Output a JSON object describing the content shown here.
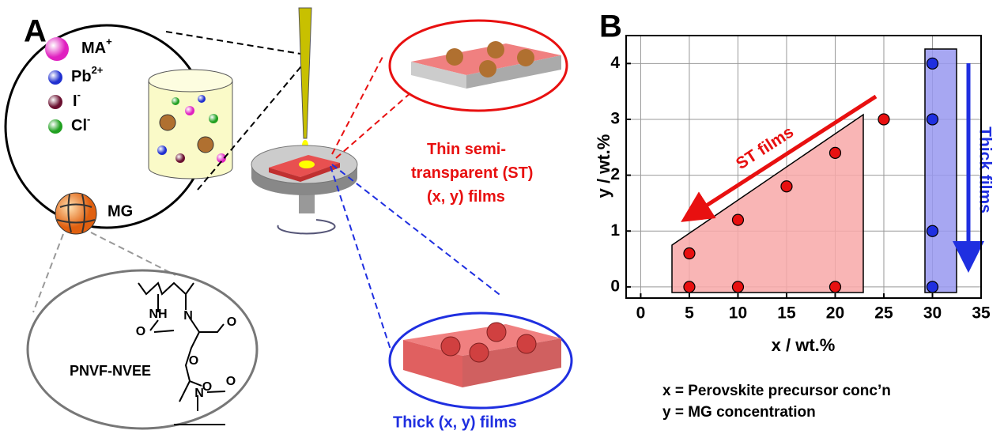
{
  "panel_a": {
    "label": "A",
    "ions": [
      {
        "base": "MA",
        "sup": "+"
      },
      {
        "base": "Pb",
        "sup": "2+"
      },
      {
        "base": "I",
        "sup": "-"
      },
      {
        "base": "Cl",
        "sup": "-"
      }
    ],
    "mg_label": "MG",
    "polymer_label": "PNVF-NVEE",
    "structure_labels": [
      "NH",
      "O",
      "N",
      "O",
      "O",
      "O",
      "N",
      "O"
    ],
    "thin_caption": [
      "Thin semi-",
      "transparent (ST)",
      "(x, y) films"
    ],
    "thick_caption": "Thick (x, y) films"
  },
  "chart_data": {
    "type": "scatter",
    "panel_label": "B",
    "x_label": "x / wt.%",
    "y_label": "y / wt.%",
    "xlim": [
      -1.5,
      35
    ],
    "ylim": [
      -0.2,
      4.5
    ],
    "xticks": [
      0,
      5,
      10,
      15,
      20,
      25,
      30,
      35
    ],
    "yticks": [
      0,
      1,
      2,
      3,
      4
    ],
    "grid": true,
    "series": [
      {
        "name": "ST films",
        "color": "#e81010",
        "x": [
          5,
          5,
          10,
          10,
          15,
          20,
          20,
          25
        ],
        "values": [
          0,
          0.6,
          0,
          1.2,
          1.8,
          0,
          2.4,
          3
        ]
      },
      {
        "name": "Thick films",
        "color": "#1f2fe0",
        "x": [
          30,
          30,
          30,
          30
        ],
        "values": [
          0,
          1,
          3,
          4
        ]
      }
    ],
    "notes": [
      "x = Perovskite precursor conc’n",
      "y = MG concentration"
    ]
  }
}
